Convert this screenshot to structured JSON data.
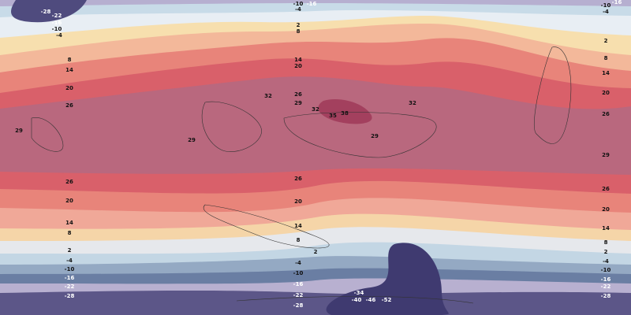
{
  "contour_labels": [
    -28,
    -22,
    -16,
    -10,
    -4,
    -10,
    -4,
    -16,
    2,
    8,
    14,
    20,
    26,
    29,
    32,
    32,
    35,
    38,
    32,
    29,
    29,
    29,
    -16,
    -10,
    -4,
    2,
    8,
    14,
    20,
    26,
    29,
    26,
    20,
    14,
    8,
    2,
    -4,
    -10,
    -16,
    -22,
    -28,
    8,
    14,
    20,
    26,
    26,
    20,
    14,
    8,
    2,
    -4,
    -10,
    -16,
    -22,
    -28,
    26,
    20,
    14,
    8,
    2,
    -4,
    -10,
    -16,
    -22,
    -28,
    -34,
    -40,
    -46,
    -52
  ]
}
